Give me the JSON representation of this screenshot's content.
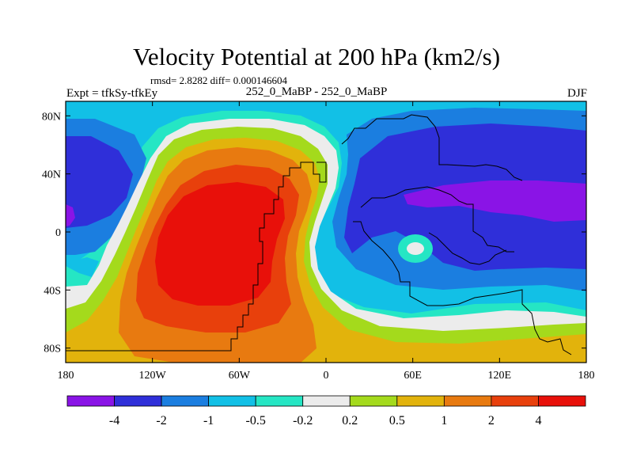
{
  "chart_data": {
    "type": "heatmap",
    "title": "Velocity Potential at 200 hPa (km2/s)",
    "stats": "rmsd= 2.8282 diff= 0.000146604",
    "left_label": "Expt = tfkSy-tfkEy",
    "center_label": "252_0_MaBP - 252_0_MaBP",
    "right_label": "DJF",
    "xlabel": "",
    "ylabel": "",
    "xlim": [
      -180,
      180
    ],
    "ylim": [
      -90,
      90
    ],
    "x_ticks": [
      {
        "value": -180,
        "label": "180"
      },
      {
        "value": -120,
        "label": "120W"
      },
      {
        "value": -60,
        "label": "60W"
      },
      {
        "value": 0,
        "label": "0"
      },
      {
        "value": 60,
        "label": "60E"
      },
      {
        "value": 120,
        "label": "120E"
      },
      {
        "value": 180,
        "label": "180"
      }
    ],
    "y_ticks": [
      {
        "value": 80,
        "label": "80N"
      },
      {
        "value": 40,
        "label": "40N"
      },
      {
        "value": 0,
        "label": "0"
      },
      {
        "value": -40,
        "label": "40S"
      },
      {
        "value": -80,
        "label": "80S"
      }
    ],
    "colorbar": {
      "labels": [
        "-4",
        "-2",
        "-1",
        "-0.5",
        "-0.2",
        "0.2",
        "0.5",
        "1",
        "2",
        "4"
      ],
      "colors": [
        "#8a14e6",
        "#2f2fd9",
        "#1b7ee0",
        "#12c0e6",
        "#25e6c4",
        "#ececec",
        "#a4da1c",
        "#e2b30c",
        "#e87a10",
        "#e8400c",
        "#e8100a"
      ]
    },
    "features": [
      {
        "name": "positive-center",
        "lon": -100,
        "lat": 5,
        "value": 5.0
      },
      {
        "name": "negative-center",
        "lon": 100,
        "lat": 15,
        "value": -5.0
      },
      {
        "name": "negative-west",
        "lon": -175,
        "lat": 20,
        "value": -2.5
      },
      {
        "name": "local-maximum",
        "lon": 58,
        "lat": -10,
        "value": 0.2
      }
    ]
  }
}
